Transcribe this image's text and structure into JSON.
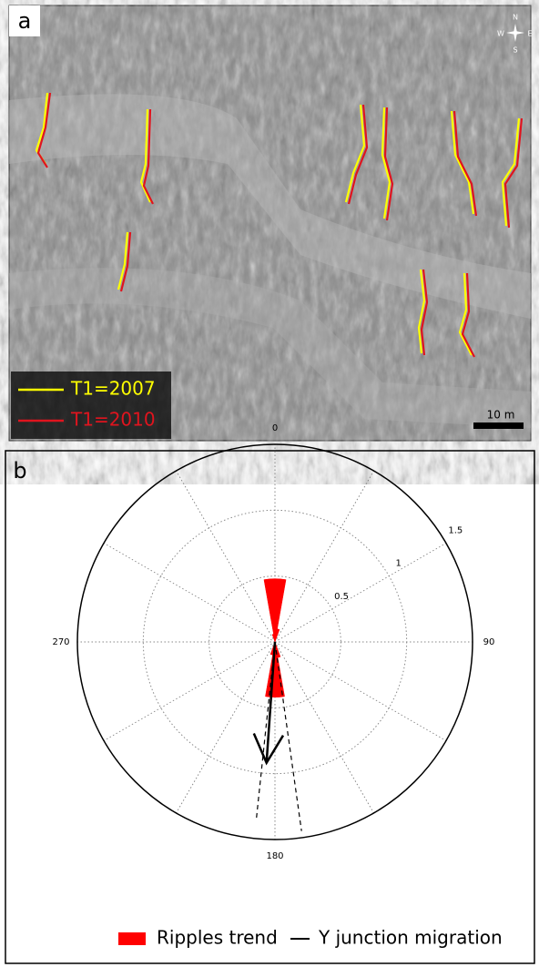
{
  "image_panel": {
    "label": "a",
    "compass": [
      "N",
      "E",
      "S",
      "W"
    ],
    "legend": [
      {
        "name": "T1=2007",
        "color": "#ffff00"
      },
      {
        "name": "T1=2010",
        "color": "#e0141e"
      }
    ],
    "scale_bar": "10 m"
  },
  "chart_data": {
    "type": "rose",
    "panel_label": "b",
    "rlim": [
      0,
      1.5
    ],
    "rticks": [
      0.5,
      1,
      1.5
    ],
    "angle_ticks": [
      0,
      90,
      180,
      270
    ],
    "grid": true,
    "series": [
      {
        "name": "Ripples trend",
        "color": "#ff0000",
        "sectors": [
          {
            "start": 340,
            "end": 350,
            "value": 0.06
          },
          {
            "start": 350,
            "end": 360,
            "value": 0.48
          },
          {
            "start": 0,
            "end": 10,
            "value": 0.48
          },
          {
            "start": 10,
            "end": 20,
            "value": 0.1
          },
          {
            "start": 160,
            "end": 170,
            "value": 0.12
          },
          {
            "start": 170,
            "end": 180,
            "value": 0.42
          },
          {
            "start": 180,
            "end": 190,
            "value": 0.42
          },
          {
            "start": 190,
            "end": 200,
            "value": 0.1
          }
        ]
      },
      {
        "name": "Y junction migration",
        "color": "#000000",
        "direction": 184,
        "length": 0.92,
        "bounds": [
          {
            "direction": 186,
            "length": 1.36
          },
          {
            "direction": 172,
            "length": 1.45
          }
        ]
      }
    ]
  }
}
